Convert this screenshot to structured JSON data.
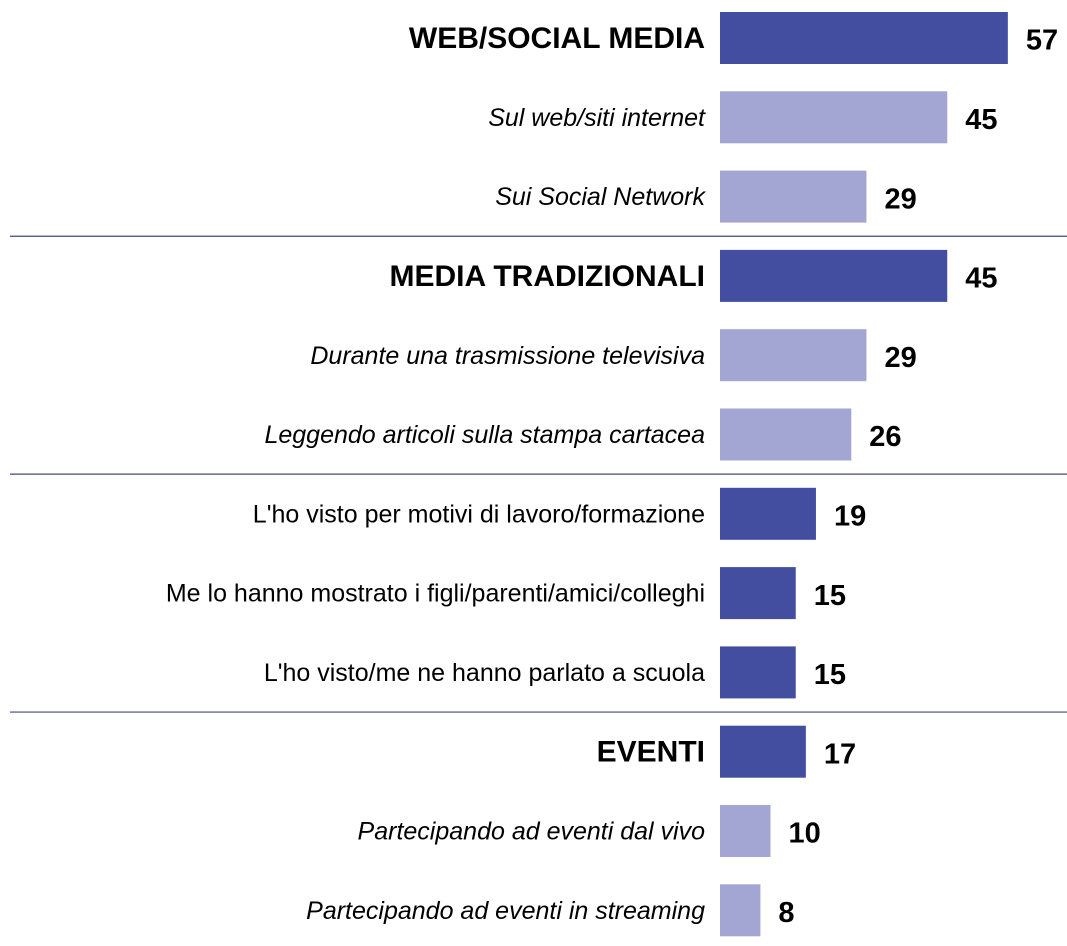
{
  "chart_data": {
    "type": "bar",
    "orientation": "horizontal",
    "categories": [
      "WEB/SOCIAL MEDIA",
      "Sul web/siti internet",
      "Sui Social Network",
      "MEDIA TRADIZIONALI",
      "Durante una trasmissione televisiva",
      "Leggendo articoli sulla stampa cartacea",
      "L'ho visto per motivi di lavoro/formazione",
      "Me lo hanno mostrato i figli/parenti/amici/colleghi",
      "L'ho visto/me ne hanno parlato a scuola",
      "EVENTI",
      "Partecipando ad eventi dal vivo",
      "Partecipando ad eventi in streaming"
    ],
    "values": [
      57,
      45,
      29,
      45,
      29,
      26,
      19,
      15,
      15,
      17,
      10,
      8
    ],
    "colors": [
      "#434ea0",
      "#a3a5d3",
      "#a3a5d3",
      "#434ea0",
      "#a3a5d3",
      "#a3a5d3",
      "#434ea0",
      "#434ea0",
      "#434ea0",
      "#434ea0",
      "#a3a5d3",
      "#a3a5d3"
    ],
    "label_styles": [
      "bold",
      "italic",
      "italic",
      "bold",
      "italic",
      "italic",
      "normal",
      "normal",
      "normal",
      "bold",
      "italic",
      "italic"
    ],
    "dividers_after": [
      2,
      5,
      8
    ],
    "divider_color": "#3d4a7a"
  }
}
